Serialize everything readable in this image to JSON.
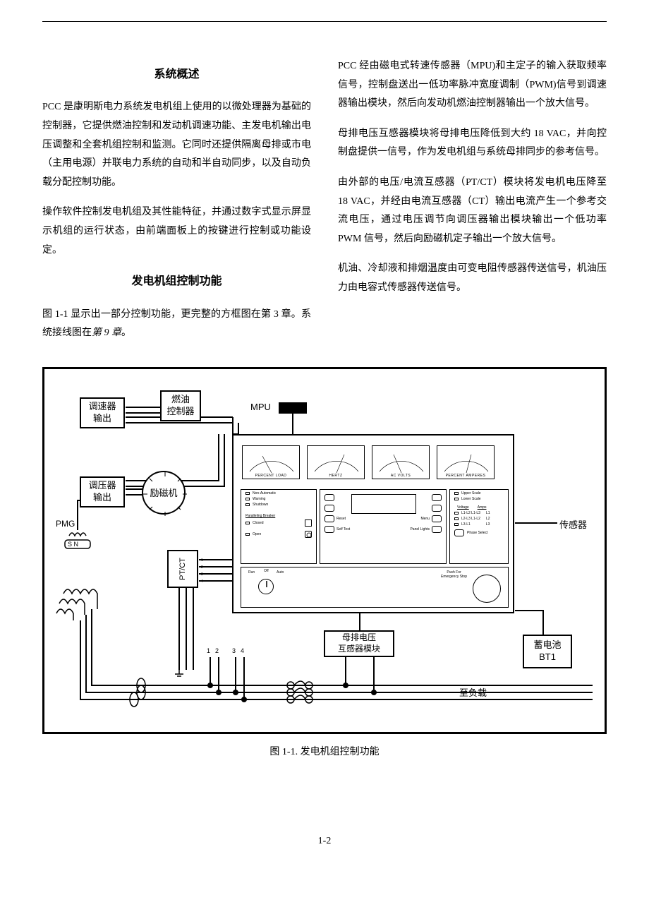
{
  "headings": {
    "overview": "系统概述",
    "control": "发电机组控制功能"
  },
  "left_paragraphs": {
    "p1": "PCC 是康明斯电力系统发电机组上使用的以微处理器为基础的控制器，它提供燃油控制和发动机调速功能、主发电机输出电压调整和全套机组控制和监测。它同时还提供隔离母排或市电（主用电源）并联电力系统的自动和半自动同步，以及自动负载分配控制功能。",
    "p2": "操作软件控制发电机组及其性能特征，并通过数字式显示屏显示机组的运行状态，由前端面板上的按键进行控制或功能设定。",
    "p3_a": "图 1-1 显示出一部分控制功能，更完整的方框图在第 3 章。系统接线图在",
    "p3_b": "第 9 章",
    "p3_c": "。"
  },
  "right_paragraphs": {
    "p1": "PCC 经由磁电式转速传感器（MPU)和主定子的输入获取频率信号，控制盘送出一低功率脉冲宽度调制（PWM)信号到调速器输出模块，然后向发动机燃油控制器输出一个放大信号。",
    "p2": "母排电压互感器模块将母排电压降低到大约 18 VAC，并向控制盘提供一信号，作为发电机组与系统母排同步的参考信号。",
    "p3": "由外部的电压/电流互感器（PT/CT）模块将发电机电压降至 18 VAC，并经由电流互感器（CT）输出电流产生一个参考交流电压，通过电压调节向调压器输出模块输出一个低功率 PWM 信号，然后向励磁机定子输出一个放大信号。",
    "p4": "机油、冷却液和排烟温度由可变电阻传感器传送信号，机油压力由电容式传感器传送信号。"
  },
  "diagram": {
    "nodes": {
      "governor_out": "调速器\n输出",
      "fuel_ctrl": "燃油\n控制器",
      "regulator_out": "调压器\n输出",
      "exciter": "励磁机",
      "ptct": "PT/CT",
      "bus_pt": "母排电压\n互感器模块",
      "battery_l1": "蓄电池",
      "battery_l2": "BT1"
    },
    "labels": {
      "mpu": "MPU",
      "pmg": "PMG",
      "sensor": "传感器",
      "to_load": "至负载",
      "sn": "S  N"
    },
    "gauges": [
      "PERCENT LOAD",
      "HERTZ",
      "AC VOLTS",
      "PERCENT AMPERES"
    ],
    "status_rows": [
      "Non-Automatic",
      "Warning",
      "Shutdown"
    ],
    "breaker_title": "Paralleling Breaker",
    "breaker_rows": [
      "Closed",
      "Open"
    ],
    "mid_left": [
      "",
      "",
      "Reset",
      "Self Test"
    ],
    "mid_right": [
      "",
      "",
      "Menu",
      "Panel Lights"
    ],
    "right_top": [
      "Upper Scale",
      "Lower Scale"
    ],
    "right_hdr": [
      "Voltage",
      "Amps"
    ],
    "right_rows": [
      "L1-L2  L1-L3",
      "L2-L3  L1-L2",
      "L3-L1",
      "Phase Select"
    ],
    "right_nums": [
      "L1",
      "L2",
      "L3"
    ],
    "knob_lbls": [
      "Run",
      "Off",
      "Auto"
    ],
    "estop": "Push For\nEmergency Stop",
    "pt_pins": [
      "1",
      "2",
      "3",
      "4"
    ],
    "bottom_pins": [
      "1",
      "2",
      "3",
      "4"
    ]
  },
  "figure_caption": "图 1-1. 发电机组控制功能",
  "page_number": "1-2",
  "colors": {
    "stroke": "#000000",
    "bg": "#ffffff"
  }
}
